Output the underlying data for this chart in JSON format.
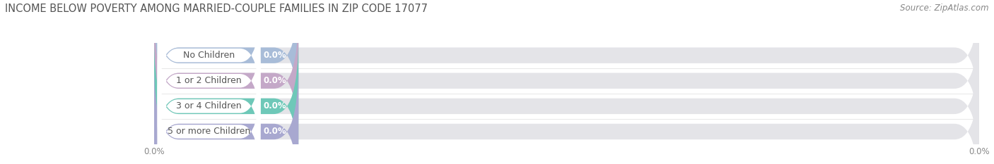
{
  "title": "INCOME BELOW POVERTY AMONG MARRIED-COUPLE FAMILIES IN ZIP CODE 17077",
  "source": "Source: ZipAtlas.com",
  "categories": [
    "No Children",
    "1 or 2 Children",
    "3 or 4 Children",
    "5 or more Children"
  ],
  "values": [
    0.0,
    0.0,
    0.0,
    0.0
  ],
  "bar_colors": [
    "#a8bcd8",
    "#c4a8c8",
    "#6ec8b8",
    "#a8a8d0"
  ],
  "bar_bg_color": "#e4e4e8",
  "label_bg_color": "#ffffff",
  "background_color": "#ffffff",
  "title_fontsize": 10.5,
  "label_fontsize": 9,
  "value_fontsize": 8.5,
  "source_fontsize": 8.5,
  "tick_fontsize": 8.5
}
